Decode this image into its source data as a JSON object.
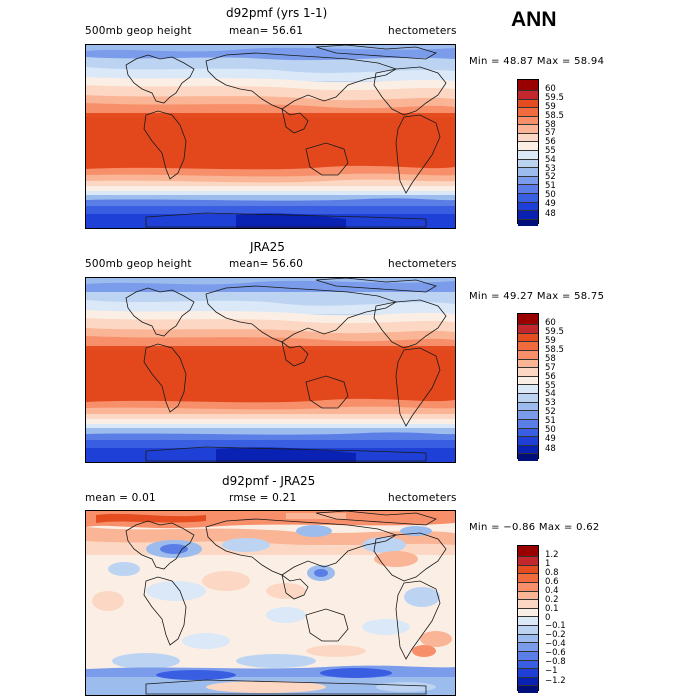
{
  "season": "ANN",
  "panels": [
    {
      "id": "model",
      "title": "d92pmf (yrs 1-1)",
      "left_label": "500mb geop height",
      "center_label": "mean=  56.61",
      "units": "hectometers",
      "minmax": "Min =  48.87 Max =  58.94",
      "colorbar": {
        "colors": [
          "#990000",
          "#c1272d",
          "#e54d20",
          "#f26b3f",
          "#f7906a",
          "#fab596",
          "#fcd8c4",
          "#fbefe5",
          "#dbe8f8",
          "#bcd4f2",
          "#9cbcee",
          "#7a9cea",
          "#5a7ee6",
          "#3a5ee2",
          "#1e40d6",
          "#0a22b4",
          "#000f7a"
        ],
        "labels": [
          "60",
          "59.5",
          "59",
          "58.5",
          "58",
          "57",
          "56",
          "55",
          "54",
          "53",
          "52",
          "51",
          "50",
          "49",
          "48"
        ]
      }
    },
    {
      "id": "obs",
      "title": "JRA25",
      "left_label": "500mb geop height",
      "center_label": "mean=  56.60",
      "units": "hectometers",
      "minmax": "Min =  49.27 Max =  58.75",
      "colorbar": {
        "colors": [
          "#990000",
          "#c1272d",
          "#e54d20",
          "#f26b3f",
          "#f7906a",
          "#fab596",
          "#fcd8c4",
          "#fbefe5",
          "#dbe8f8",
          "#bcd4f2",
          "#9cbcee",
          "#7a9cea",
          "#5a7ee6",
          "#3a5ee2",
          "#1e40d6",
          "#0a22b4",
          "#000f7a"
        ],
        "labels": [
          "60",
          "59.5",
          "59",
          "58.5",
          "58",
          "57",
          "56",
          "55",
          "54",
          "53",
          "52",
          "51",
          "50",
          "49",
          "48"
        ]
      }
    },
    {
      "id": "diff",
      "title": "d92pmf - JRA25",
      "left_label": "mean =   0.01",
      "center_label": "rmse =   0.21",
      "units": "hectometers",
      "minmax": "Min = −0.86 Max =   0.62",
      "colorbar": {
        "colors": [
          "#990000",
          "#c1272d",
          "#e54d20",
          "#f26b3f",
          "#f7906a",
          "#fab596",
          "#fcd8c4",
          "#fbefe5",
          "#dbe8f8",
          "#bcd4f2",
          "#9cbcee",
          "#7a9cea",
          "#5a7ee6",
          "#3a5ee2",
          "#1e40d6",
          "#0a22b4",
          "#000f7a"
        ],
        "labels": [
          "1.2",
          "1",
          "0.8",
          "0.6",
          "0.4",
          "0.2",
          "0.1",
          "0",
          "−0.1",
          "−0.2",
          "−0.4",
          "−0.6",
          "−0.8",
          "−1",
          "−1.2"
        ]
      }
    }
  ],
  "colors": {
    "land_outline": "#1a1a1a",
    "frame": "#000000"
  }
}
